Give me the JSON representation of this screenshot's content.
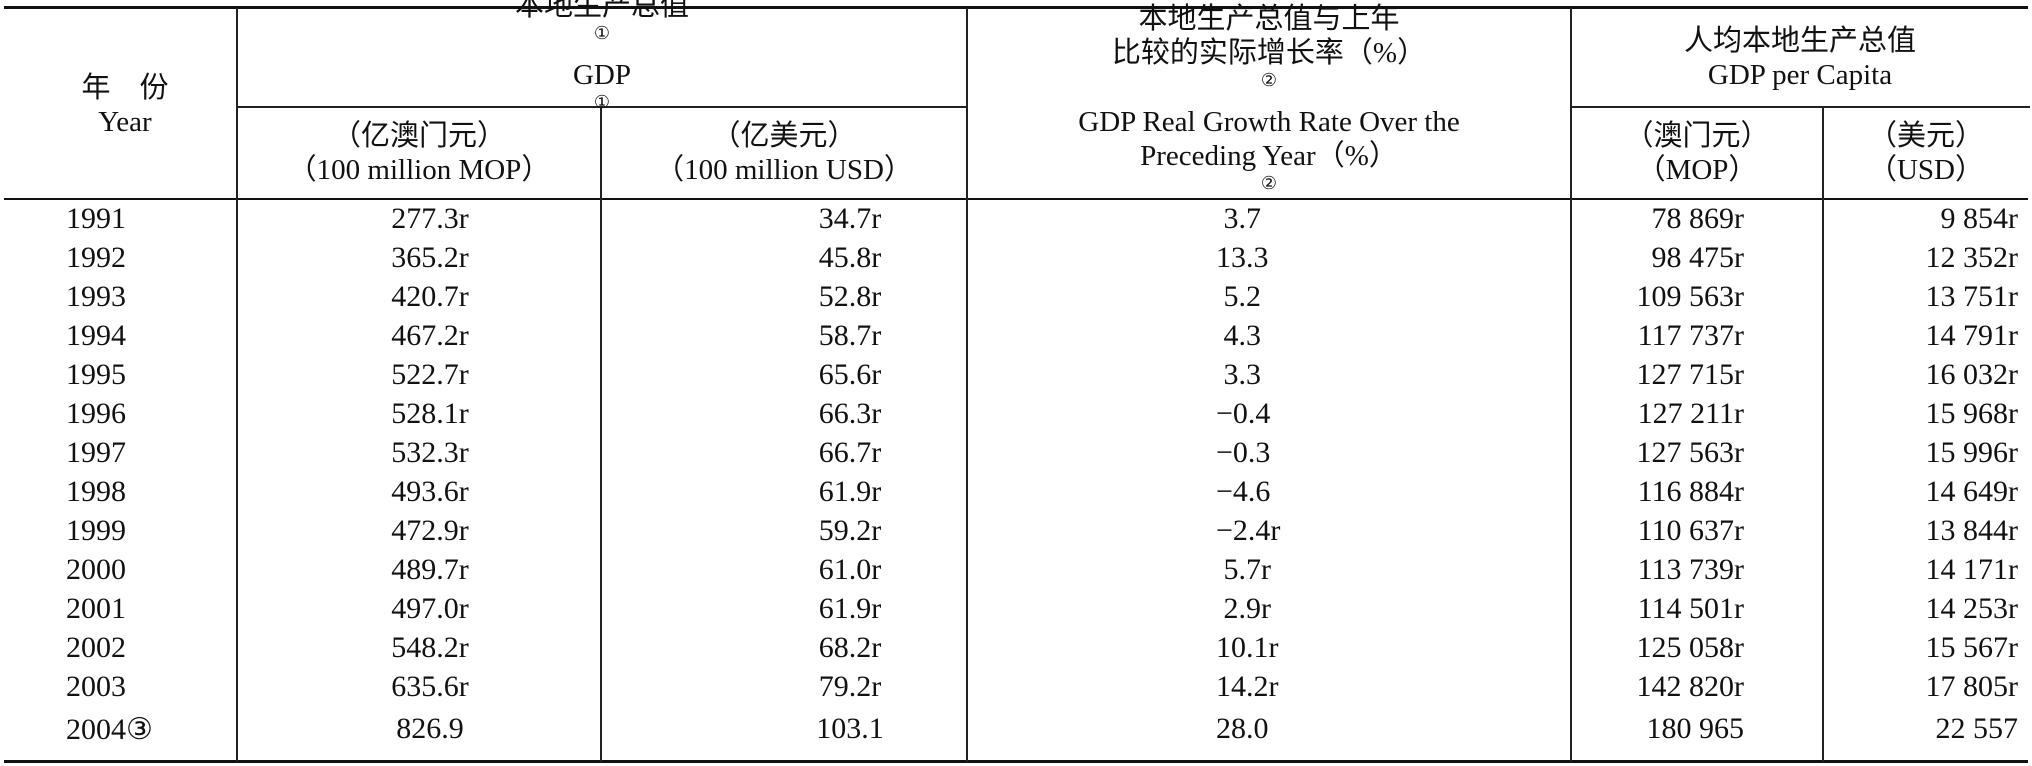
{
  "header": {
    "year_zh": "年　份",
    "year_en": "Year",
    "gdp_zh": "本地生产总值",
    "gdp_zh_fn": "①",
    "gdp_en": "GDP",
    "gdp_en_fn": "①",
    "mop_zh": "（亿澳门元）",
    "mop_en": "（100 million MOP）",
    "usd_zh": "（亿美元）",
    "usd_en": "（100 million USD）",
    "rate_zh_1": "本地生产总值与上年",
    "rate_zh_2": "比较的实际增长率（%）",
    "rate_zh_fn": "②",
    "rate_en_1": "GDP Real Growth Rate Over the",
    "rate_en_2": "Preceding Year（%）",
    "rate_en_fn": "②",
    "pc_zh": "人均本地生产总值",
    "pc_en": "GDP per Capita",
    "pc_mop_zh": "（澳门元）",
    "pc_mop_en": "（MOP）",
    "pc_usd_zh": "（美元）",
    "pc_usd_en": "（USD）"
  },
  "rows": [
    {
      "year": "1991",
      "mop": "277.3r",
      "usd": "34.7r",
      "rate": " 3.7",
      "pc_mop": "78 869r",
      "pc_usd": "9 854r"
    },
    {
      "year": "1992",
      "mop": "365.2r",
      "usd": "45.8r",
      "rate": "13.3",
      "pc_mop": "98 475r",
      "pc_usd": "12 352r"
    },
    {
      "year": "1993",
      "mop": "420.7r",
      "usd": "52.8r",
      "rate": " 5.2",
      "pc_mop": "109 563r",
      "pc_usd": "13 751r"
    },
    {
      "year": "1994",
      "mop": "467.2r",
      "usd": "58.7r",
      "rate": " 4.3",
      "pc_mop": "117 737r",
      "pc_usd": "14 791r"
    },
    {
      "year": "1995",
      "mop": "522.7r",
      "usd": "65.6r",
      "rate": " 3.3",
      "pc_mop": "127 715r",
      "pc_usd": "16 032r"
    },
    {
      "year": "1996",
      "mop": "528.1r",
      "usd": "66.3r",
      "rate": "−0.4",
      "pc_mop": "127 211r",
      "pc_usd": "15 968r"
    },
    {
      "year": "1997",
      "mop": "532.3r",
      "usd": "66.7r",
      "rate": "−0.3",
      "pc_mop": "127 563r",
      "pc_usd": "15 996r"
    },
    {
      "year": "1998",
      "mop": "493.6r",
      "usd": "61.9r",
      "rate": "−4.6",
      "pc_mop": "116 884r",
      "pc_usd": "14 649r"
    },
    {
      "year": "1999",
      "mop": "472.9r",
      "usd": "59.2r",
      "rate": "−2.4r",
      "pc_mop": "110 637r",
      "pc_usd": "13 844r"
    },
    {
      "year": "2000",
      "mop": "489.7r",
      "usd": "61.0r",
      "rate": " 5.7r",
      "pc_mop": "113 739r",
      "pc_usd": "14 171r"
    },
    {
      "year": "2001",
      "mop": "497.0r",
      "usd": "61.9r",
      "rate": " 2.9r",
      "pc_mop": "114 501r",
      "pc_usd": "14 253r"
    },
    {
      "year": "2002",
      "mop": "548.2r",
      "usd": "68.2r",
      "rate": "10.1r",
      "pc_mop": "125 058r",
      "pc_usd": "15 567r"
    },
    {
      "year": "2003",
      "mop": "635.6r",
      "usd": "79.2r",
      "rate": "14.2r",
      "pc_mop": "142 820r",
      "pc_usd": "17 805r"
    },
    {
      "year": "2004③",
      "mop": "826.9",
      "usd": "103.1",
      "rate": "28.0",
      "pc_mop": "180 965",
      "pc_usd": "22 557"
    }
  ]
}
